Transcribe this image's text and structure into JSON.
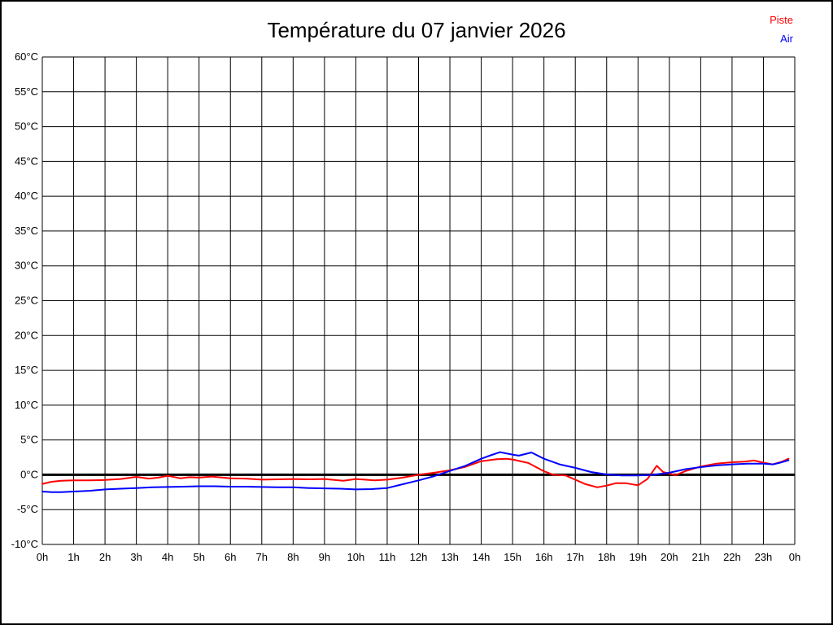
{
  "title": "Température du 07 janvier 2026",
  "legend": {
    "items": [
      {
        "label": "Piste",
        "color": "#ff0000"
      },
      {
        "label": "Air",
        "color": "#0000ff"
      }
    ]
  },
  "chart_data": {
    "type": "line",
    "title": "Température du 07 janvier 2026",
    "xlabel": "",
    "ylabel": "",
    "x_axis": {
      "min": 0,
      "max": 24,
      "tick_step_hours": 1,
      "tick_labels": [
        "0h",
        "1h",
        "2h",
        "3h",
        "4h",
        "5h",
        "6h",
        "7h",
        "8h",
        "9h",
        "10h",
        "11h",
        "12h",
        "13h",
        "14h",
        "15h",
        "16h",
        "17h",
        "18h",
        "19h",
        "20h",
        "21h",
        "22h",
        "23h",
        "0h"
      ]
    },
    "y_axis": {
      "min": -10,
      "max": 60,
      "tick_step": 5,
      "tick_labels": [
        "60°C",
        "55°C",
        "50°C",
        "45°C",
        "40°C",
        "35°C",
        "30°C",
        "25°C",
        "20°C",
        "15°C",
        "10°C",
        "5°C",
        "0°C",
        "-5°C",
        "-10°C"
      ]
    },
    "grid": true,
    "grid_color": "#000000",
    "zero_line": {
      "value": 0,
      "color": "#000000",
      "width": 3
    },
    "legend_position": "top-right",
    "series": [
      {
        "name": "Piste",
        "color": "#ff0000",
        "points": [
          [
            0,
            -1.3
          ],
          [
            0.3,
            -1.0
          ],
          [
            0.6,
            -0.85
          ],
          [
            1,
            -0.8
          ],
          [
            1.5,
            -0.8
          ],
          [
            2,
            -0.75
          ],
          [
            2.5,
            -0.6
          ],
          [
            3,
            -0.3
          ],
          [
            3.4,
            -0.55
          ],
          [
            3.7,
            -0.4
          ],
          [
            4,
            -0.15
          ],
          [
            4.4,
            -0.5
          ],
          [
            4.7,
            -0.35
          ],
          [
            5,
            -0.4
          ],
          [
            5.4,
            -0.25
          ],
          [
            6,
            -0.5
          ],
          [
            6.5,
            -0.55
          ],
          [
            7,
            -0.7
          ],
          [
            7.5,
            -0.65
          ],
          [
            8,
            -0.6
          ],
          [
            8.5,
            -0.65
          ],
          [
            9,
            -0.6
          ],
          [
            9.6,
            -0.85
          ],
          [
            10,
            -0.6
          ],
          [
            10.6,
            -0.8
          ],
          [
            11,
            -0.7
          ],
          [
            11.5,
            -0.4
          ],
          [
            12,
            0
          ],
          [
            12.5,
            0.3
          ],
          [
            13,
            0.65
          ],
          [
            13.5,
            1.15
          ],
          [
            14,
            1.95
          ],
          [
            14.5,
            2.25
          ],
          [
            14.8,
            2.3
          ],
          [
            15,
            2.2
          ],
          [
            15.5,
            1.7
          ],
          [
            16,
            0.5
          ],
          [
            16.3,
            0
          ],
          [
            16.7,
            -0.1
          ],
          [
            17,
            -0.7
          ],
          [
            17.3,
            -1.3
          ],
          [
            17.7,
            -1.8
          ],
          [
            18,
            -1.55
          ],
          [
            18.3,
            -1.2
          ],
          [
            18.6,
            -1.2
          ],
          [
            19,
            -1.5
          ],
          [
            19.3,
            -0.6
          ],
          [
            19.6,
            1.3
          ],
          [
            19.8,
            0.4
          ],
          [
            20,
            0.15
          ],
          [
            20.2,
            -0.05
          ],
          [
            20.5,
            0.5
          ],
          [
            21,
            1.2
          ],
          [
            21.5,
            1.6
          ],
          [
            22,
            1.8
          ],
          [
            22.4,
            1.9
          ],
          [
            22.7,
            2.05
          ],
          [
            23,
            1.75
          ],
          [
            23.3,
            1.5
          ],
          [
            23.6,
            1.9
          ],
          [
            23.8,
            2.3
          ]
        ]
      },
      {
        "name": "Air",
        "color": "#0000ff",
        "points": [
          [
            0,
            -2.4
          ],
          [
            0.3,
            -2.5
          ],
          [
            0.6,
            -2.5
          ],
          [
            1,
            -2.4
          ],
          [
            1.5,
            -2.3
          ],
          [
            2,
            -2.1
          ],
          [
            2.5,
            -2.0
          ],
          [
            3,
            -1.9
          ],
          [
            3.5,
            -1.8
          ],
          [
            4,
            -1.75
          ],
          [
            4.5,
            -1.7
          ],
          [
            5,
            -1.65
          ],
          [
            5.5,
            -1.65
          ],
          [
            6,
            -1.7
          ],
          [
            6.5,
            -1.7
          ],
          [
            7,
            -1.75
          ],
          [
            7.5,
            -1.8
          ],
          [
            8,
            -1.8
          ],
          [
            8.5,
            -1.9
          ],
          [
            9,
            -1.95
          ],
          [
            9.5,
            -2.0
          ],
          [
            10,
            -2.1
          ],
          [
            10.5,
            -2.05
          ],
          [
            11,
            -1.9
          ],
          [
            11.5,
            -1.35
          ],
          [
            12,
            -0.8
          ],
          [
            12.5,
            -0.2
          ],
          [
            13,
            0.55
          ],
          [
            13.5,
            1.3
          ],
          [
            14,
            2.3
          ],
          [
            14.3,
            2.8
          ],
          [
            14.6,
            3.25
          ],
          [
            15,
            2.9
          ],
          [
            15.2,
            2.75
          ],
          [
            15.6,
            3.2
          ],
          [
            16,
            2.3
          ],
          [
            16.5,
            1.5
          ],
          [
            17,
            1.0
          ],
          [
            17.5,
            0.4
          ],
          [
            18,
            0.05
          ],
          [
            18.5,
            -0.1
          ],
          [
            19,
            -0.1
          ],
          [
            19.5,
            0
          ],
          [
            20,
            0.3
          ],
          [
            20.5,
            0.8
          ],
          [
            21,
            1.1
          ],
          [
            21.5,
            1.35
          ],
          [
            22,
            1.5
          ],
          [
            22.5,
            1.6
          ],
          [
            23,
            1.6
          ],
          [
            23.3,
            1.5
          ],
          [
            23.5,
            1.7
          ],
          [
            23.8,
            2.1
          ]
        ]
      }
    ]
  }
}
